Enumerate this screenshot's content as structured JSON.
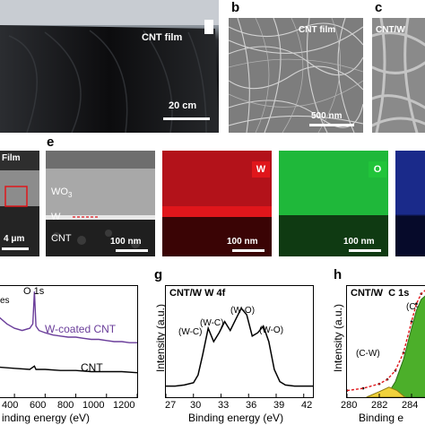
{
  "panels": {
    "a": {
      "label": "CNT film",
      "scalebar": "20 cm"
    },
    "b": {
      "letter": "b",
      "label": "CNT film",
      "scalebar": "500 nm"
    },
    "c": {
      "letter": "c",
      "label": "CNT/W"
    },
    "d": {
      "label": "Film",
      "scalebar": "4 μm"
    },
    "e": {
      "letter": "e",
      "labels": {
        "wo3": "WO",
        "wo3_sub": "3",
        "w": "W",
        "cnt": "CNT"
      },
      "scalebar": "100 nm",
      "maps": [
        {
          "element": "W",
          "scalebar": "100 nm",
          "color": "#e0161b"
        },
        {
          "element": "O",
          "scalebar": "100 nm",
          "color": "#21c43a"
        }
      ]
    },
    "f": {
      "annotations": {
        "o1s": "O 1s",
        "w_coated": "W-coated CNT",
        "cnt": "CNT",
        "left_fragment": "es"
      },
      "xticks": [
        "400",
        "600",
        "800",
        "1000",
        "1200"
      ],
      "xlabel": "inding energy (eV)"
    },
    "g": {
      "letter": "g",
      "title": "CNT/W W 4f",
      "peaks": [
        "(W-C)",
        "(W-C)",
        "(W-O)",
        "(W-O)"
      ],
      "xticks": [
        "27",
        "30",
        "33",
        "36",
        "39",
        "42"
      ],
      "xlabel": "Binding energy (eV)",
      "ylabel": "Intensity (a.u.)"
    },
    "h": {
      "letter": "h",
      "title": "CNT/W  C 1s",
      "peaks": [
        "(C-W)",
        "(C-"
      ],
      "xticks": [
        "280",
        "282",
        "284"
      ],
      "xlabel": "Binding e",
      "ylabel": "Intensity (a.u.)"
    }
  },
  "colors": {
    "w_coated_curve": "#6a3d9a",
    "cnt_curve": "#000000",
    "fit_green": "#4caf2a",
    "fit_yellow": "#f0d23c",
    "fit_red_dash": "#e0161b"
  },
  "chart_data": [
    {
      "panel": "f",
      "type": "line",
      "xlabel": "inding energy (eV)",
      "xlim": [
        300,
        1200
      ],
      "series": [
        {
          "name": "W-coated CNT",
          "x": [
            300,
            350,
            400,
            450,
            500,
            520,
            530,
            540,
            560,
            600,
            650,
            700,
            750,
            800,
            850,
            900,
            950,
            1000,
            1050,
            1100,
            1150,
            1200
          ],
          "y": [
            0.72,
            0.66,
            0.62,
            0.6,
            0.62,
            0.66,
            0.95,
            0.64,
            0.6,
            0.58,
            0.56,
            0.55,
            0.54,
            0.54,
            0.53,
            0.52,
            0.52,
            0.51,
            0.5,
            0.5,
            0.49,
            0.49
          ]
        },
        {
          "name": "CNT",
          "x": [
            300,
            400,
            500,
            530,
            540,
            600,
            700,
            800,
            900,
            1000,
            1100,
            1200
          ],
          "y": [
            0.27,
            0.26,
            0.25,
            0.28,
            0.25,
            0.25,
            0.24,
            0.24,
            0.23,
            0.23,
            0.23,
            0.22
          ]
        }
      ]
    },
    {
      "panel": "g",
      "type": "line",
      "title": "CNT/W W 4f",
      "xlabel": "Binding energy (eV)",
      "ylabel": "Intensity (a.u.)",
      "xlim": [
        27,
        43
      ],
      "series": [
        {
          "x": [
            27,
            28,
            29,
            30,
            30.5,
            31,
            31.6,
            32.2,
            32.8,
            33.4,
            34.0,
            34.6,
            35.2,
            35.8,
            36.4,
            37.0,
            37.6,
            38.2,
            38.8,
            39.4,
            40,
            41,
            42,
            43
          ],
          "y": [
            0.1,
            0.1,
            0.11,
            0.13,
            0.2,
            0.38,
            0.62,
            0.5,
            0.58,
            0.68,
            0.6,
            0.7,
            0.8,
            0.74,
            0.55,
            0.58,
            0.64,
            0.5,
            0.25,
            0.14,
            0.11,
            0.1,
            0.1,
            0.1
          ]
        }
      ]
    },
    {
      "panel": "h",
      "type": "line",
      "title": "CNT/W  C 1s",
      "xlabel": "Binding e",
      "ylabel": "Intensity (a.u.)",
      "xlim": [
        280,
        285
      ],
      "series": [
        {
          "x": [
            280,
            281,
            282,
            282.5,
            283,
            283.5,
            284,
            284.3,
            284.6,
            285
          ],
          "y": [
            0.06,
            0.08,
            0.12,
            0.16,
            0.24,
            0.4,
            0.68,
            0.84,
            0.93,
            0.98
          ]
        }
      ]
    }
  ]
}
